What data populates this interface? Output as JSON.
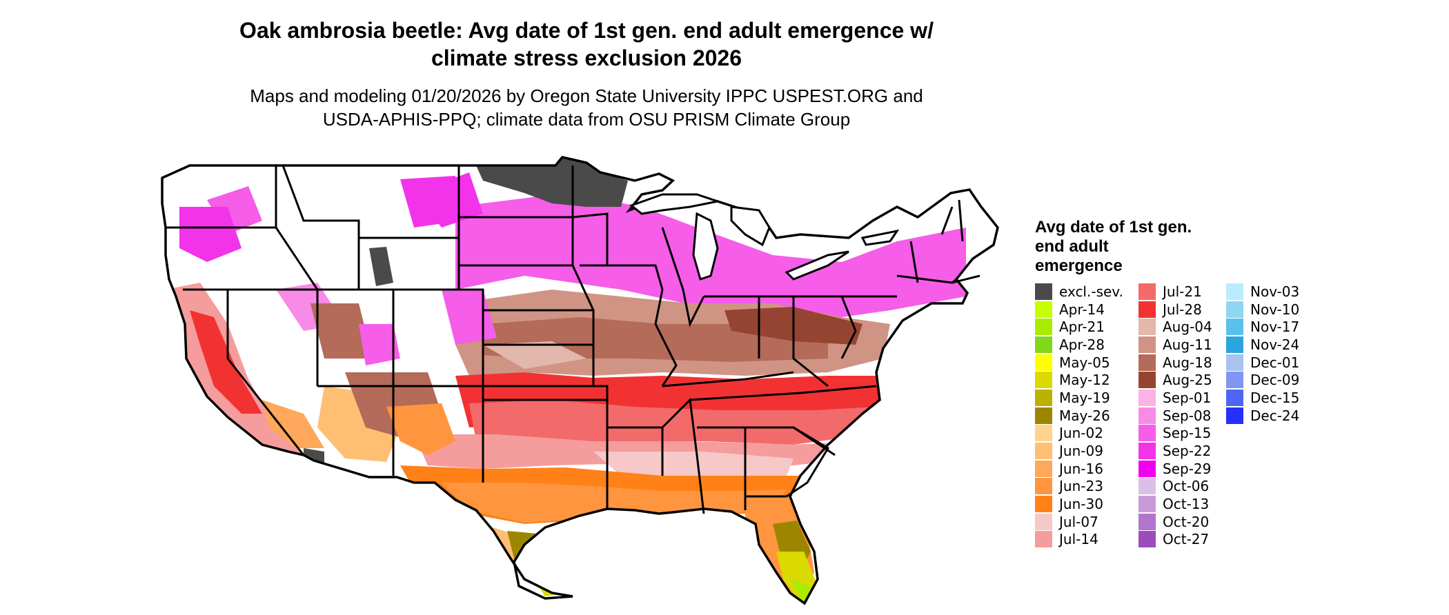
{
  "title_line1": "Oak ambrosia beetle: Avg date of 1st gen. end adult emergence w/",
  "title_line2": "climate stress exclusion 2026",
  "subtitle_line1": "Maps and modeling 01/20/2026 by Oregon State University IPPC USPEST.ORG and",
  "subtitle_line2": "USDA-APHIS-PPQ; climate data from OSU PRISM Climate Group",
  "legend": {
    "title": "Avg date of 1st gen. end adult emergence",
    "items": [
      {
        "label": "excl.-sev.",
        "color": "#4a4a4a"
      },
      {
        "label": "Apr-14",
        "color": "#c8ff00"
      },
      {
        "label": "Apr-21",
        "color": "#a8ec00"
      },
      {
        "label": "Apr-28",
        "color": "#7fd81a"
      },
      {
        "label": "May-05",
        "color": "#ffff00"
      },
      {
        "label": "May-12",
        "color": "#dada00"
      },
      {
        "label": "May-19",
        "color": "#bcb000"
      },
      {
        "label": "May-26",
        "color": "#9c8600"
      },
      {
        "label": "Jun-02",
        "color": "#ffd38e"
      },
      {
        "label": "Jun-09",
        "color": "#ffbf73"
      },
      {
        "label": "Jun-16",
        "color": "#ffa75a"
      },
      {
        "label": "Jun-23",
        "color": "#ff953f"
      },
      {
        "label": "Jun-30",
        "color": "#ff8118"
      },
      {
        "label": "Jul-07",
        "color": "#f7c8c8"
      },
      {
        "label": "Jul-14",
        "color": "#f59c9c"
      },
      {
        "label": "Jul-21",
        "color": "#f36a6a"
      },
      {
        "label": "Jul-28",
        "color": "#f23232"
      },
      {
        "label": "Aug-04",
        "color": "#e2b8ad"
      },
      {
        "label": "Aug-11",
        "color": "#cf9484"
      },
      {
        "label": "Aug-18",
        "color": "#b46b59"
      },
      {
        "label": "Aug-25",
        "color": "#964432"
      },
      {
        "label": "Sep-01",
        "color": "#fbb2e6"
      },
      {
        "label": "Sep-08",
        "color": "#f88ae8"
      },
      {
        "label": "Sep-15",
        "color": "#f65de8"
      },
      {
        "label": "Sep-22",
        "color": "#f233ea"
      },
      {
        "label": "Sep-29",
        "color": "#f000f0"
      },
      {
        "label": "Oct-06",
        "color": "#dcbfe8"
      },
      {
        "label": "Oct-13",
        "color": "#c89ad8"
      },
      {
        "label": "Oct-20",
        "color": "#b274cc"
      },
      {
        "label": "Oct-27",
        "color": "#9c4cbc"
      },
      {
        "label": "Nov-03",
        "color": "#b9ecfc"
      },
      {
        "label": "Nov-10",
        "color": "#8fd6f4"
      },
      {
        "label": "Nov-17",
        "color": "#5cc0ec"
      },
      {
        "label": "Nov-24",
        "color": "#2aa6de"
      },
      {
        "label": "Dec-01",
        "color": "#a9c2ee"
      },
      {
        "label": "Dec-09",
        "color": "#7f96f2"
      },
      {
        "label": "Dec-15",
        "color": "#4f66f4"
      },
      {
        "label": "Dec-24",
        "color": "#2630fa"
      }
    ]
  }
}
